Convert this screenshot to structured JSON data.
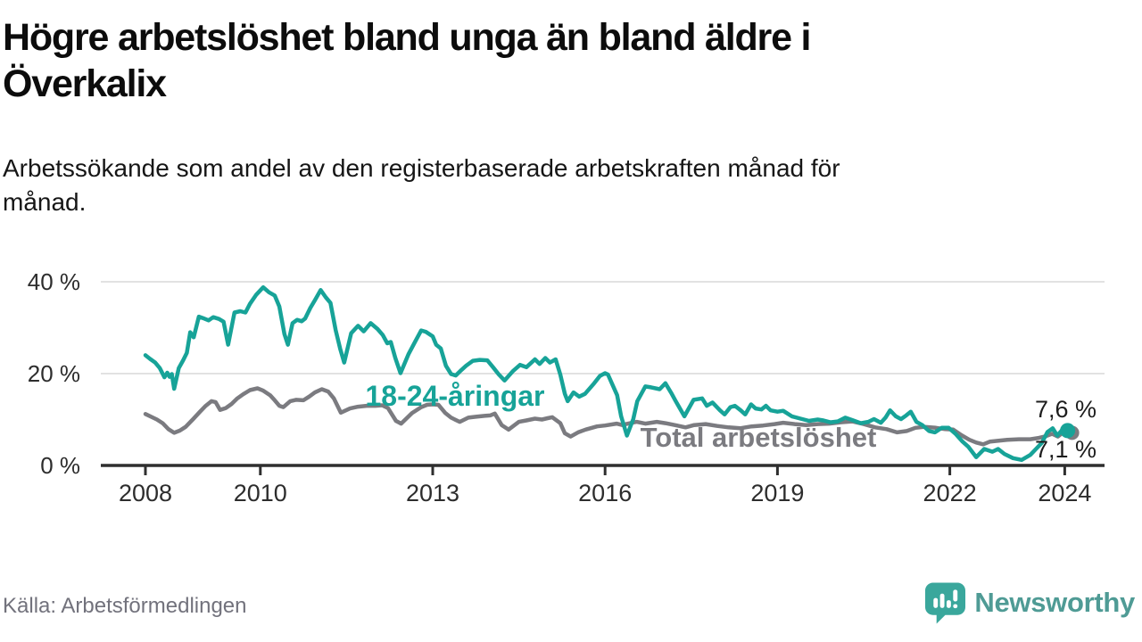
{
  "header": {
    "title": "Högre arbetslöshet bland unga än bland äldre i\nÖverkalix",
    "subtitle": "Arbetssökande som andel av den registerbaserade arbetskraften månad för\nmånad."
  },
  "footer": {
    "source": "Källa: Arbetsförmedlingen",
    "brand": "Newsworthy"
  },
  "colors": {
    "young_series": "#17a398",
    "total_series": "#7b7b80",
    "axis": "#2f2f2f",
    "grid": "#d8d8d8",
    "end_label_text": "#1d1d1d",
    "logo_icon": "#3aa79c",
    "logo_text": "#4f9b95"
  },
  "chart_data": {
    "type": "line",
    "unit": "%",
    "x_axis": {
      "ticks": [
        2008,
        2010,
        2013,
        2016,
        2019,
        2022,
        2024
      ],
      "labels": [
        "2008",
        "2010",
        "2013",
        "2016",
        "2019",
        "2022",
        "2024"
      ],
      "range": [
        2007.75,
        2024.6
      ]
    },
    "y_axis": {
      "ticks": [
        0,
        20,
        40
      ],
      "labels": [
        "0 %",
        "20 %",
        "40 %"
      ],
      "range": [
        0,
        42
      ],
      "grid": true
    },
    "legend_position": "inline-labels",
    "series": [
      {
        "name": "Total arbetslöshet",
        "color": "#7b7b80",
        "end_label": "7,1 %",
        "points": [
          [
            2008.0,
            11.2
          ],
          [
            2008.1,
            10.6
          ],
          [
            2008.2,
            10.0
          ],
          [
            2008.3,
            9.2
          ],
          [
            2008.4,
            7.9
          ],
          [
            2008.5,
            7.1
          ],
          [
            2008.6,
            7.6
          ],
          [
            2008.7,
            8.4
          ],
          [
            2008.83,
            10.1
          ],
          [
            2008.95,
            11.7
          ],
          [
            2009.05,
            13.0
          ],
          [
            2009.15,
            14.0
          ],
          [
            2009.22,
            13.8
          ],
          [
            2009.3,
            12.1
          ],
          [
            2009.4,
            12.5
          ],
          [
            2009.5,
            13.4
          ],
          [
            2009.6,
            14.6
          ],
          [
            2009.7,
            15.5
          ],
          [
            2009.82,
            16.4
          ],
          [
            2009.95,
            16.8
          ],
          [
            2010.05,
            16.3
          ],
          [
            2010.17,
            15.3
          ],
          [
            2010.25,
            14.2
          ],
          [
            2010.33,
            13.0
          ],
          [
            2010.4,
            12.7
          ],
          [
            2010.52,
            14.0
          ],
          [
            2010.62,
            14.3
          ],
          [
            2010.75,
            14.2
          ],
          [
            2010.85,
            15.0
          ],
          [
            2010.95,
            15.9
          ],
          [
            2011.07,
            16.6
          ],
          [
            2011.18,
            16.1
          ],
          [
            2011.28,
            14.6
          ],
          [
            2011.4,
            11.5
          ],
          [
            2011.56,
            12.4
          ],
          [
            2011.7,
            12.8
          ],
          [
            2011.85,
            13.0
          ],
          [
            2012.0,
            13.0
          ],
          [
            2012.12,
            13.1
          ],
          [
            2012.22,
            12.5
          ],
          [
            2012.36,
            9.7
          ],
          [
            2012.45,
            9.1
          ],
          [
            2012.64,
            11.4
          ],
          [
            2012.8,
            12.7
          ],
          [
            2012.9,
            13.2
          ],
          [
            2013.0,
            13.3
          ],
          [
            2013.1,
            13.2
          ],
          [
            2013.22,
            11.4
          ],
          [
            2013.32,
            10.4
          ],
          [
            2013.47,
            9.5
          ],
          [
            2013.62,
            10.4
          ],
          [
            2013.75,
            10.6
          ],
          [
            2013.9,
            10.8
          ],
          [
            2014.0,
            10.9
          ],
          [
            2014.08,
            11.3
          ],
          [
            2014.2,
            8.8
          ],
          [
            2014.32,
            7.8
          ],
          [
            2014.5,
            9.5
          ],
          [
            2014.63,
            9.8
          ],
          [
            2014.78,
            10.2
          ],
          [
            2014.9,
            10.0
          ],
          [
            2015.0,
            10.3
          ],
          [
            2015.08,
            10.5
          ],
          [
            2015.22,
            9.2
          ],
          [
            2015.3,
            7.0
          ],
          [
            2015.4,
            6.3
          ],
          [
            2015.53,
            7.2
          ],
          [
            2015.66,
            7.8
          ],
          [
            2015.86,
            8.5
          ],
          [
            2016.0,
            8.7
          ],
          [
            2016.2,
            9.1
          ],
          [
            2016.3,
            8.8
          ],
          [
            2016.4,
            9.1
          ],
          [
            2016.55,
            9.5
          ],
          [
            2016.7,
            9.1
          ],
          [
            2016.9,
            9.5
          ],
          [
            2017.05,
            9.2
          ],
          [
            2017.25,
            8.7
          ],
          [
            2017.4,
            8.3
          ],
          [
            2017.55,
            8.8
          ],
          [
            2017.75,
            9.0
          ],
          [
            2017.95,
            8.6
          ],
          [
            2018.15,
            8.3
          ],
          [
            2018.35,
            8.1
          ],
          [
            2018.55,
            8.5
          ],
          [
            2018.75,
            8.7
          ],
          [
            2018.95,
            9.0
          ],
          [
            2019.1,
            9.3
          ],
          [
            2019.3,
            9.0
          ],
          [
            2019.5,
            8.8
          ],
          [
            2019.7,
            9.0
          ],
          [
            2019.9,
            9.1
          ],
          [
            2020.1,
            9.4
          ],
          [
            2020.3,
            9.6
          ],
          [
            2020.5,
            9.0
          ],
          [
            2020.7,
            8.3
          ],
          [
            2020.9,
            7.9
          ],
          [
            2021.08,
            7.2
          ],
          [
            2021.25,
            7.5
          ],
          [
            2021.4,
            8.2
          ],
          [
            2021.56,
            8.4
          ],
          [
            2021.76,
            8.2
          ],
          [
            2021.92,
            7.9
          ],
          [
            2022.06,
            7.8
          ],
          [
            2022.2,
            6.6
          ],
          [
            2022.34,
            5.6
          ],
          [
            2022.46,
            5.0
          ],
          [
            2022.58,
            4.6
          ],
          [
            2022.7,
            5.2
          ],
          [
            2022.85,
            5.4
          ],
          [
            2023.0,
            5.6
          ],
          [
            2023.2,
            5.7
          ],
          [
            2023.4,
            5.7
          ],
          [
            2023.55,
            6.0
          ],
          [
            2023.65,
            6.3
          ],
          [
            2023.78,
            6.9
          ],
          [
            2023.88,
            6.3
          ],
          [
            2023.97,
            7.2
          ],
          [
            2024.05,
            7.1
          ]
        ]
      },
      {
        "name": "18-24-åringar",
        "color": "#17a398",
        "end_label": "7,6 %",
        "points": [
          [
            2008.0,
            24.0
          ],
          [
            2008.08,
            23.2
          ],
          [
            2008.17,
            22.4
          ],
          [
            2008.25,
            21.2
          ],
          [
            2008.33,
            19.2
          ],
          [
            2008.38,
            20.2
          ],
          [
            2008.42,
            19.3
          ],
          [
            2008.46,
            19.9
          ],
          [
            2008.5,
            16.7
          ],
          [
            2008.58,
            21.2
          ],
          [
            2008.66,
            23.0
          ],
          [
            2008.72,
            24.5
          ],
          [
            2008.78,
            29.0
          ],
          [
            2008.84,
            27.9
          ],
          [
            2008.93,
            32.4
          ],
          [
            2009.0,
            32.1
          ],
          [
            2009.1,
            31.6
          ],
          [
            2009.18,
            32.3
          ],
          [
            2009.28,
            31.9
          ],
          [
            2009.36,
            31.3
          ],
          [
            2009.44,
            26.3
          ],
          [
            2009.55,
            33.3
          ],
          [
            2009.65,
            33.6
          ],
          [
            2009.74,
            33.3
          ],
          [
            2009.82,
            35.2
          ],
          [
            2009.93,
            37.2
          ],
          [
            2010.05,
            38.8
          ],
          [
            2010.15,
            37.7
          ],
          [
            2010.25,
            37.0
          ],
          [
            2010.33,
            34.6
          ],
          [
            2010.42,
            28.6
          ],
          [
            2010.48,
            26.3
          ],
          [
            2010.56,
            31.0
          ],
          [
            2010.64,
            31.7
          ],
          [
            2010.72,
            31.4
          ],
          [
            2010.78,
            32.0
          ],
          [
            2010.87,
            34.3
          ],
          [
            2010.95,
            36.0
          ],
          [
            2011.05,
            38.2
          ],
          [
            2011.14,
            36.6
          ],
          [
            2011.22,
            35.4
          ],
          [
            2011.31,
            29.5
          ],
          [
            2011.39,
            25.4
          ],
          [
            2011.46,
            22.4
          ],
          [
            2011.58,
            28.8
          ],
          [
            2011.7,
            30.4
          ],
          [
            2011.8,
            29.2
          ],
          [
            2011.92,
            31.0
          ],
          [
            2012.04,
            29.7
          ],
          [
            2012.13,
            28.4
          ],
          [
            2012.21,
            26.6
          ],
          [
            2012.27,
            26.9
          ],
          [
            2012.35,
            23.4
          ],
          [
            2012.44,
            20.1
          ],
          [
            2012.58,
            24.3
          ],
          [
            2012.7,
            27.1
          ],
          [
            2012.8,
            29.4
          ],
          [
            2012.88,
            29.1
          ],
          [
            2013.0,
            28.1
          ],
          [
            2013.06,
            26.3
          ],
          [
            2013.14,
            25.5
          ],
          [
            2013.23,
            21.7
          ],
          [
            2013.32,
            19.9
          ],
          [
            2013.4,
            19.6
          ],
          [
            2013.5,
            20.8
          ],
          [
            2013.58,
            21.7
          ],
          [
            2013.7,
            22.8
          ],
          [
            2013.82,
            23.0
          ],
          [
            2013.95,
            22.9
          ],
          [
            2014.05,
            21.4
          ],
          [
            2014.15,
            19.8
          ],
          [
            2014.25,
            18.5
          ],
          [
            2014.4,
            20.6
          ],
          [
            2014.52,
            21.9
          ],
          [
            2014.63,
            21.4
          ],
          [
            2014.78,
            23.1
          ],
          [
            2014.86,
            22.1
          ],
          [
            2014.96,
            23.4
          ],
          [
            2015.04,
            22.4
          ],
          [
            2015.14,
            23.1
          ],
          [
            2015.22,
            19.8
          ],
          [
            2015.3,
            15.6
          ],
          [
            2015.35,
            14.0
          ],
          [
            2015.45,
            15.9
          ],
          [
            2015.55,
            15.0
          ],
          [
            2015.65,
            15.6
          ],
          [
            2015.81,
            17.9
          ],
          [
            2015.91,
            19.5
          ],
          [
            2016.0,
            20.1
          ],
          [
            2016.05,
            19.8
          ],
          [
            2016.21,
            15.3
          ],
          [
            2016.28,
            10.7
          ],
          [
            2016.38,
            6.5
          ],
          [
            2016.49,
            10.1
          ],
          [
            2016.56,
            14.0
          ],
          [
            2016.7,
            17.2
          ],
          [
            2016.8,
            17.0
          ],
          [
            2016.95,
            16.6
          ],
          [
            2017.05,
            17.9
          ],
          [
            2017.15,
            15.8
          ],
          [
            2017.23,
            14.0
          ],
          [
            2017.38,
            10.7
          ],
          [
            2017.54,
            14.3
          ],
          [
            2017.69,
            14.6
          ],
          [
            2017.77,
            13.0
          ],
          [
            2017.87,
            13.7
          ],
          [
            2018.0,
            12.0
          ],
          [
            2018.08,
            11.1
          ],
          [
            2018.18,
            12.7
          ],
          [
            2018.26,
            13.0
          ],
          [
            2018.36,
            12.0
          ],
          [
            2018.44,
            11.1
          ],
          [
            2018.54,
            13.3
          ],
          [
            2018.62,
            12.4
          ],
          [
            2018.72,
            12.2
          ],
          [
            2018.8,
            13.0
          ],
          [
            2018.88,
            12.0
          ],
          [
            2019.0,
            11.7
          ],
          [
            2019.1,
            11.9
          ],
          [
            2019.25,
            10.7
          ],
          [
            2019.4,
            10.2
          ],
          [
            2019.55,
            9.7
          ],
          [
            2019.7,
            10.0
          ],
          [
            2019.8,
            9.8
          ],
          [
            2019.92,
            9.4
          ],
          [
            2020.05,
            9.6
          ],
          [
            2020.18,
            10.4
          ],
          [
            2020.32,
            9.8
          ],
          [
            2020.45,
            9.2
          ],
          [
            2020.58,
            9.5
          ],
          [
            2020.68,
            10.1
          ],
          [
            2020.8,
            9.3
          ],
          [
            2020.88,
            10.4
          ],
          [
            2020.96,
            12.0
          ],
          [
            2021.06,
            10.7
          ],
          [
            2021.15,
            10.1
          ],
          [
            2021.24,
            10.9
          ],
          [
            2021.32,
            11.7
          ],
          [
            2021.42,
            9.5
          ],
          [
            2021.52,
            8.8
          ],
          [
            2021.64,
            7.5
          ],
          [
            2021.74,
            7.2
          ],
          [
            2021.86,
            8.2
          ],
          [
            2021.98,
            8.2
          ],
          [
            2022.1,
            6.9
          ],
          [
            2022.22,
            5.2
          ],
          [
            2022.32,
            4.1
          ],
          [
            2022.46,
            1.8
          ],
          [
            2022.6,
            3.6
          ],
          [
            2022.74,
            3.0
          ],
          [
            2022.84,
            3.6
          ],
          [
            2022.95,
            2.5
          ],
          [
            2023.1,
            1.6
          ],
          [
            2023.25,
            1.2
          ],
          [
            2023.4,
            2.3
          ],
          [
            2023.5,
            3.6
          ],
          [
            2023.6,
            4.9
          ],
          [
            2023.7,
            7.3
          ],
          [
            2023.79,
            8.1
          ],
          [
            2023.87,
            6.5
          ],
          [
            2023.96,
            7.8
          ],
          [
            2024.05,
            7.6
          ]
        ]
      }
    ]
  }
}
